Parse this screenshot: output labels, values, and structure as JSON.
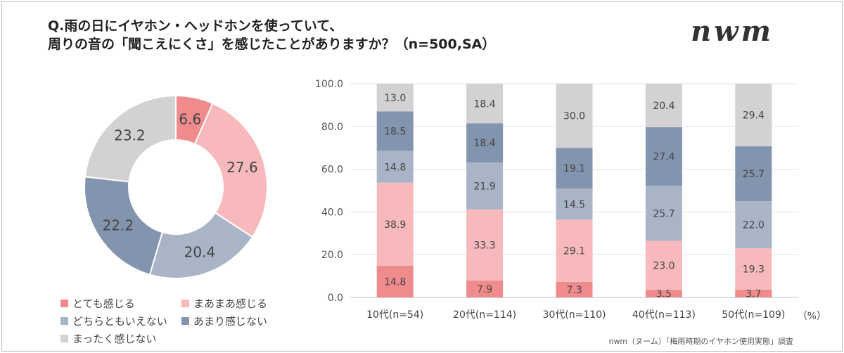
{
  "title_line1": "Q.雨の日にイヤホン・ヘッドホンを使っていて、",
  "title_line2": "周りの音の「聞こえにくさ」を感じたことがありますか？（n=500,SA）",
  "brand_logo": "nwm",
  "footer": "nwm（ヌーム）「梅雨時期のイヤホン使用実態」調査",
  "unit_label": "（%）",
  "colors": {
    "very": "#ef8a8d",
    "somewhat": "#f7b9bb",
    "neither": "#a9b4c6",
    "not_much": "#8395ae",
    "not_at_all": "#d3d1d3"
  },
  "chart_data": [
    {
      "type": "pie",
      "donut": true,
      "categories": [
        "とても感じる",
        "まあまあ感じる",
        "どちらともいえない",
        "あまり感じない",
        "まったく感じない"
      ],
      "values": [
        6.6,
        27.6,
        20.4,
        22.2,
        23.2
      ]
    },
    {
      "type": "bar",
      "stacked": true,
      "categories": [
        "10代(n=54)",
        "20代(n=114)",
        "30代(n=110)",
        "40代(n=113)",
        "50代(n=109)"
      ],
      "ylim": [
        0,
        100
      ],
      "yticks": [
        "0.0",
        "20.0",
        "40.0",
        "60.0",
        "80.0",
        "100.0"
      ],
      "grid": true,
      "series": [
        {
          "name": "とても感じる",
          "values": [
            14.8,
            7.9,
            7.3,
            3.5,
            3.7
          ]
        },
        {
          "name": "まあまあ感じる",
          "values": [
            38.9,
            33.3,
            29.1,
            23.0,
            19.3
          ]
        },
        {
          "name": "どちらともいえない",
          "values": [
            14.8,
            21.9,
            14.5,
            25.7,
            22.0
          ]
        },
        {
          "name": "あまり感じない",
          "values": [
            18.5,
            18.4,
            19.1,
            27.4,
            25.7
          ]
        },
        {
          "name": "まったく感じない",
          "values": [
            13.0,
            18.4,
            30.0,
            20.4,
            29.4
          ]
        }
      ]
    }
  ],
  "legend": [
    {
      "label": "とても感じる",
      "color": "#ef8a8d"
    },
    {
      "label": "まあまあ感じる",
      "color": "#f7b9bb"
    },
    {
      "label": "どちらともいえない",
      "color": "#a9b4c6"
    },
    {
      "label": "あまり感じない",
      "color": "#8395ae"
    },
    {
      "label": "まったく感じない",
      "color": "#d3d1d3"
    }
  ]
}
